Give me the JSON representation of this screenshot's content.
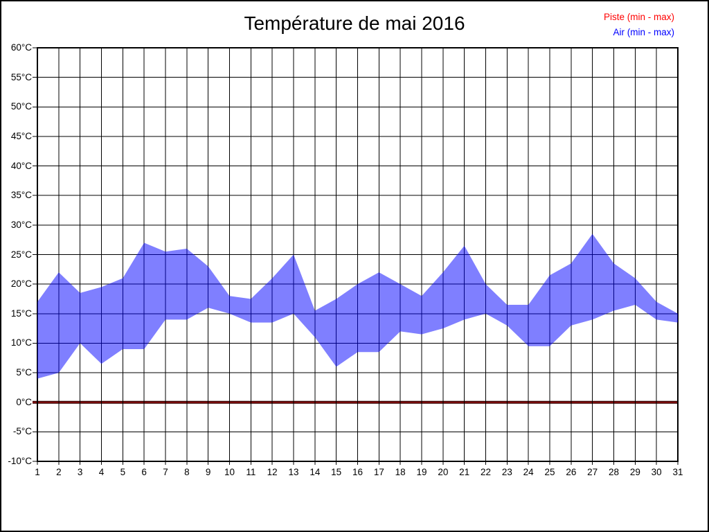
{
  "title": "Température de mai 2016",
  "legend": {
    "items": [
      {
        "label": "Piste (min - max)",
        "color": "#ff0000"
      },
      {
        "label": "Air (min - max)",
        "color": "#0000ff"
      }
    ]
  },
  "chart_data": {
    "type": "area",
    "title": "Température de mai 2016",
    "xlabel": "",
    "ylabel": "",
    "xlim": [
      1,
      31
    ],
    "ylim": [
      -10,
      60
    ],
    "grid": true,
    "grid_color": "#000000",
    "legend_position": "top-right",
    "x": [
      1,
      2,
      3,
      4,
      5,
      6,
      7,
      8,
      9,
      10,
      11,
      12,
      13,
      14,
      15,
      16,
      17,
      18,
      19,
      20,
      21,
      22,
      23,
      24,
      25,
      26,
      27,
      28,
      29,
      30,
      31
    ],
    "y_tick_labels": [
      "60°C",
      "55°C",
      "50°C",
      "45°C",
      "40°C",
      "35°C",
      "30°C",
      "25°C",
      "20°C",
      "15°C",
      "10°C",
      "5°C",
      "0°C",
      "-5°C",
      "-10°C"
    ],
    "series": [
      {
        "name": "Piste (min - max)",
        "type": "flat-line",
        "value": 0,
        "color": "#8b1010",
        "edge_color": "#2d0000",
        "legend_color": "#ff0000"
      },
      {
        "name": "Air (min - max)",
        "type": "band",
        "color": "#0000ff",
        "fill_opacity": 0.5,
        "legend_color": "#0000ff",
        "min": [
          4,
          5,
          10,
          6.5,
          9,
          9,
          14,
          14,
          16,
          15,
          13.5,
          13.5,
          15,
          11,
          6,
          8.5,
          8.5,
          12,
          11.5,
          12.5,
          14,
          15,
          13,
          9.5,
          9.5,
          13,
          14,
          15.5,
          16.5,
          14,
          13.5
        ],
        "max": [
          17,
          22,
          18.5,
          19.5,
          21,
          27,
          25.5,
          26,
          23,
          18,
          17.5,
          21,
          25,
          15.5,
          17.5,
          20,
          22,
          20,
          18,
          22,
          26.5,
          20,
          16.5,
          16.5,
          21.5,
          23.5,
          28.5,
          23.5,
          21,
          17,
          15
        ]
      }
    ]
  }
}
